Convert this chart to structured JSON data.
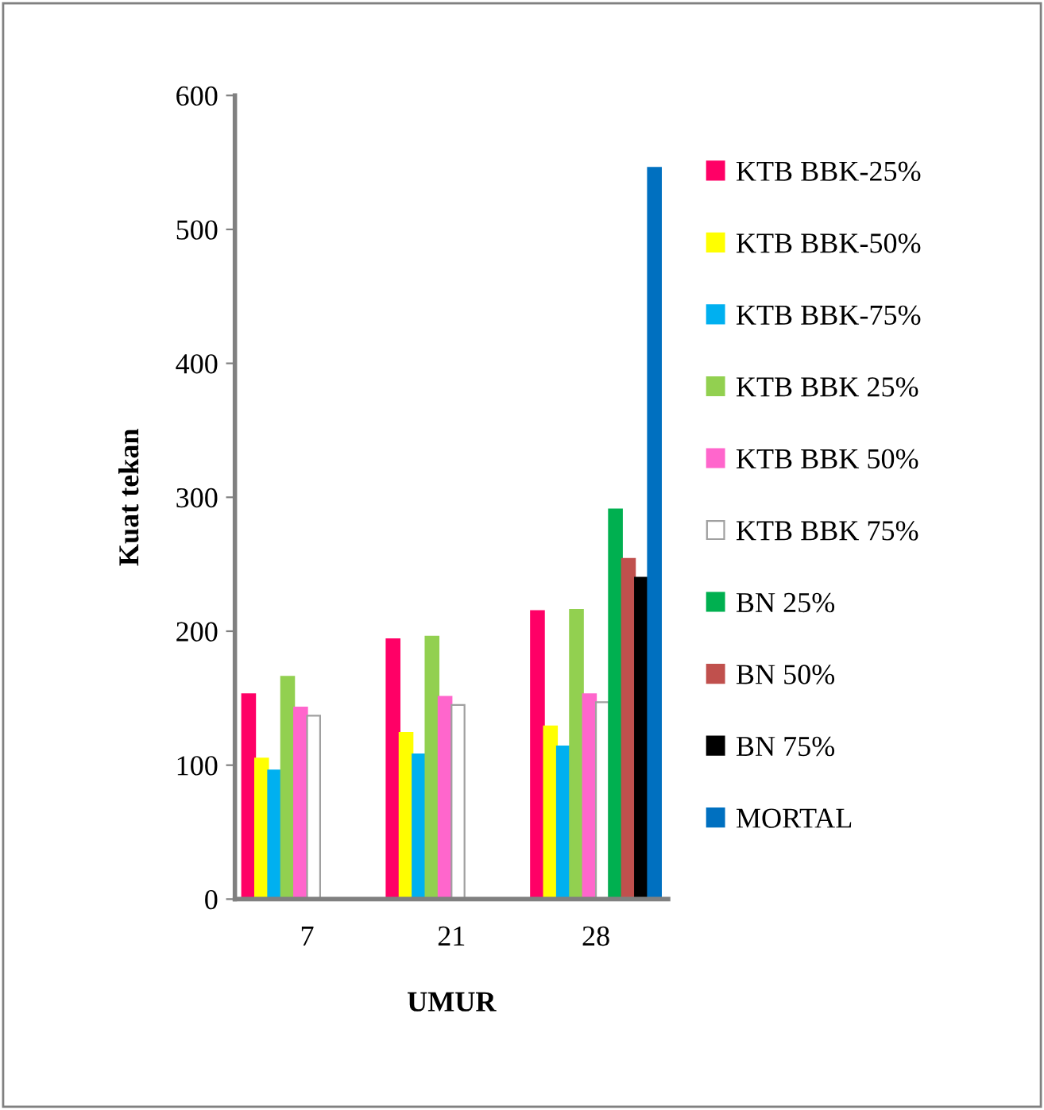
{
  "chart_data": {
    "type": "bar",
    "xlabel": "UMUR",
    "ylabel": "Kuat tekan",
    "categories": [
      "7",
      "21",
      "28"
    ],
    "series": [
      {
        "name": "KTB BBK-25%",
        "color": "#ff0066",
        "values": [
          153,
          194,
          215
        ]
      },
      {
        "name": "KTB BBK-50%",
        "color": "#ffff00",
        "values": [
          105,
          124,
          129
        ]
      },
      {
        "name": "KTB BBK-75%",
        "color": "#00b0f0",
        "values": [
          96,
          108,
          114
        ]
      },
      {
        "name": "KTB BBK 25%",
        "color": "#92d050",
        "values": [
          166,
          196,
          216
        ]
      },
      {
        "name": "KTB BBK 50%",
        "color": "#ff66cc",
        "values": [
          143,
          151,
          153
        ]
      },
      {
        "name": "KTB BBK 75%",
        "color": "#ffffff",
        "values": [
          137,
          145,
          147
        ]
      },
      {
        "name": "BN 25%",
        "color": "#00b050",
        "values": [
          null,
          null,
          291
        ]
      },
      {
        "name": "BN 50%",
        "color": "#c0504d",
        "values": [
          null,
          null,
          254
        ]
      },
      {
        "name": "BN 75%",
        "color": "#000000",
        "values": [
          null,
          null,
          240
        ]
      },
      {
        "name": "MORTAL",
        "color": "#0070c0",
        "values": [
          null,
          null,
          546
        ]
      }
    ],
    "ylim": [
      0,
      600
    ],
    "yticks": [
      0,
      100,
      200,
      300,
      400,
      500,
      600
    ],
    "grid": false,
    "legend": "right"
  }
}
